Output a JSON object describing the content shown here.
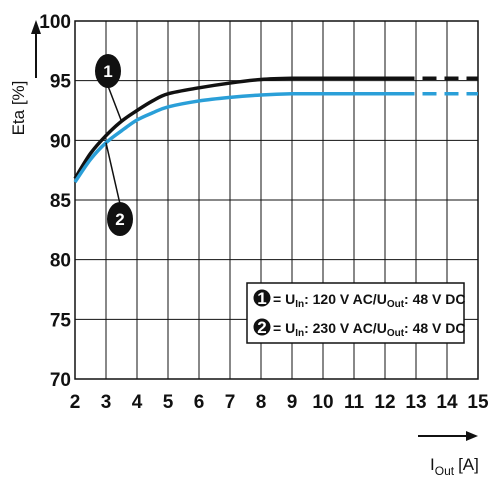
{
  "chart_data": {
    "type": "line",
    "ylabel": "Eta [%]",
    "xlabel_main": "I",
    "xlabel_sub": "Out",
    "xlabel_unit": "[A]",
    "xlim": [
      2,
      15
    ],
    "ylim": [
      70,
      100
    ],
    "x_ticks": [
      "2",
      "3",
      "4",
      "5",
      "6",
      "7",
      "8",
      "9",
      "10",
      "11",
      "12",
      "13",
      "14",
      "15"
    ],
    "y_ticks": [
      "70",
      "75",
      "80",
      "85",
      "90",
      "95",
      "100"
    ],
    "grid": true,
    "legend_position": "bottom-right",
    "series": [
      {
        "id": "1",
        "color": "#111111",
        "x": [
          2,
          2.5,
          3,
          3.5,
          4,
          4.5,
          5,
          6,
          7,
          8,
          9,
          10,
          11,
          12.5
        ],
        "y": [
          86.8,
          88.9,
          90.4,
          91.6,
          92.5,
          93.3,
          93.9,
          94.4,
          94.8,
          95.1,
          95.2,
          95.2,
          95.2,
          95.2
        ],
        "dashed_x": [
          12.5,
          15
        ],
        "dashed_y": [
          95.2,
          95.2
        ],
        "legend": {
          "num": "1",
          "prefix": "= U",
          "sub1": "In",
          "mid": ": 120 V AC/U",
          "sub2": "Out",
          "suffix": ": 48 V DC"
        }
      },
      {
        "id": "2",
        "color": "#2a9fd8",
        "x": [
          2,
          2.5,
          3,
          3.5,
          4,
          4.5,
          5,
          6,
          7,
          8,
          9,
          10,
          11,
          12.5
        ],
        "y": [
          86.5,
          88.4,
          89.8,
          90.8,
          91.7,
          92.3,
          92.8,
          93.3,
          93.6,
          93.8,
          93.9,
          93.9,
          93.9,
          93.9
        ],
        "dashed_x": [
          12.5,
          15
        ],
        "dashed_y": [
          93.9,
          93.9
        ],
        "legend": {
          "num": "2",
          "prefix": "= U",
          "sub1": "In",
          "mid": ": 230 V AC/U",
          "sub2": "Out",
          "suffix": ": 48 V DC"
        }
      }
    ]
  }
}
